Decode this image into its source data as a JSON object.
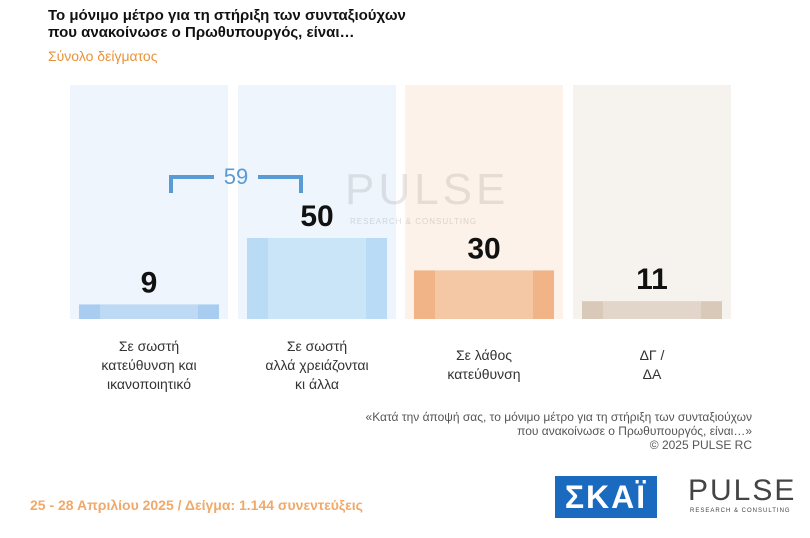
{
  "chart_data": {
    "type": "bar",
    "title": "Το μόνιμο μέτρο  για τη στήριξη των συνταξιούχων\nπου ανακοίνωσε ο Πρωθυπουργός, είναι…",
    "subtitle": "Σύνολο δείγματος",
    "categories": [
      "Σε σωστή\nκατεύθυνση και\nικανοποιητικό",
      "Σε σωστή\nαλλά χρειάζονται\nκι άλλα",
      "Σε λάθος\nκατεύθυνση",
      "ΔΓ /\nΔΑ"
    ],
    "values": [
      9,
      50,
      30,
      11
    ],
    "colors": [
      "#a9cdf0",
      "#b9dbf6",
      "#f0b487",
      "#d8c9b9"
    ],
    "bracket_total": 59,
    "footnote": "«Κατά την άποψή σας, το μόνιμο μέτρο  για τη στήριξη των συνταξιούχων\nπου ανακοίνωσε ο Πρωθυπουργός, είναι…»\n©  2025  PULSE RC",
    "date_sample": "25 - 28 Απριλίου 2025  /  Δείγμα:  1.144 συνεντεύξεις",
    "logo_skai": "ΣΚΑΪ",
    "logo_pulse": "PULSE",
    "logo_pulse_sub": "RESEARCH & CONSULTING"
  }
}
